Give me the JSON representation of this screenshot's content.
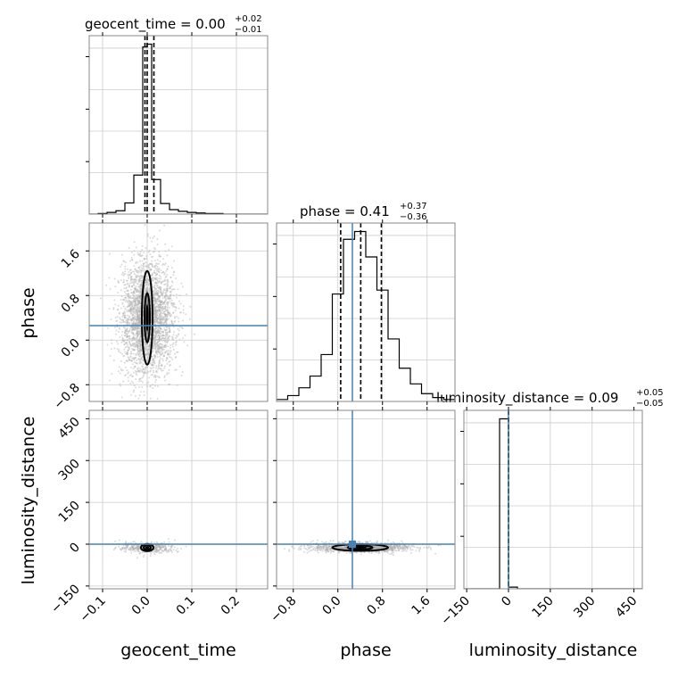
{
  "chart_data": {
    "type": "corner",
    "parameters": [
      "geocent_time",
      "phase",
      "luminosity_distance"
    ],
    "axis_labels": {
      "geocent_time": "geocent_time",
      "phase": "phase",
      "luminosity_distance": "luminosity_distance"
    },
    "truths": {
      "geocent_time": 0.0,
      "phase": 0.26,
      "luminosity_distance": 0
    },
    "ranges": {
      "geocent_time": [
        -0.13,
        0.27
      ],
      "phase": [
        -1.1,
        2.1
      ],
      "luminosity_distance": [
        -160,
        480
      ]
    },
    "ticks": {
      "geocent_time": {
        "values": [
          -0.1,
          0.0,
          0.1,
          0.2
        ],
        "labels": [
          "−0.1",
          "0.0",
          "0.1",
          "0.2"
        ]
      },
      "phase": {
        "values": [
          -0.8,
          0.0,
          0.8,
          1.6
        ],
        "labels": [
          "−0.8",
          "0.0",
          "0.8",
          "1.6"
        ]
      },
      "luminosity_distance": {
        "values": [
          -150,
          0,
          150,
          300,
          450
        ],
        "labels": [
          "−150",
          "0",
          "150",
          "300",
          "450"
        ]
      }
    },
    "titles": [
      {
        "param": "geocent_time",
        "text": "geocent_time = 0.00",
        "sup": "+0.02",
        "sub": "−0.01"
      },
      {
        "param": "phase",
        "text": "phase = 0.41",
        "sup": "+0.37",
        "sub": "−0.36"
      },
      {
        "param": "luminosity_distance",
        "text": "luminosity_distance = 0.09",
        "sup": "+0.05",
        "sub": "−0.05"
      }
    ],
    "histograms": {
      "geocent_time": {
        "quantiles": [
          -0.005,
          0.0,
          0.015
        ],
        "bins": [
          {
            "x0": -0.13,
            "x1": -0.11,
            "h": 0
          },
          {
            "x0": -0.11,
            "x1": -0.09,
            "h": 1
          },
          {
            "x0": -0.09,
            "x1": -0.07,
            "h": 3
          },
          {
            "x0": -0.07,
            "x1": -0.05,
            "h": 6
          },
          {
            "x0": -0.05,
            "x1": -0.03,
            "h": 20
          },
          {
            "x0": -0.03,
            "x1": -0.01,
            "h": 70
          },
          {
            "x0": -0.01,
            "x1": 0.0,
            "h": 300
          },
          {
            "x0": 0.0,
            "x1": 0.01,
            "h": 305
          },
          {
            "x0": 0.01,
            "x1": 0.03,
            "h": 62
          },
          {
            "x0": 0.03,
            "x1": 0.05,
            "h": 19
          },
          {
            "x0": 0.05,
            "x1": 0.07,
            "h": 8
          },
          {
            "x0": 0.07,
            "x1": 0.09,
            "h": 5
          },
          {
            "x0": 0.09,
            "x1": 0.11,
            "h": 3
          },
          {
            "x0": 0.11,
            "x1": 0.13,
            "h": 2
          },
          {
            "x0": 0.13,
            "x1": 0.15,
            "h": 1
          },
          {
            "x0": 0.15,
            "x1": 0.17,
            "h": 1
          },
          {
            "x0": 0.17,
            "x1": 0.27,
            "h": 0
          }
        ]
      },
      "phase": {
        "quantiles": [
          0.05,
          0.41,
          0.78
        ],
        "bins": [
          {
            "x0": -1.1,
            "x1": -0.9,
            "h": 1
          },
          {
            "x0": -0.9,
            "x1": -0.7,
            "h": 3
          },
          {
            "x0": -0.7,
            "x1": -0.5,
            "h": 7
          },
          {
            "x0": -0.5,
            "x1": -0.3,
            "h": 13
          },
          {
            "x0": -0.3,
            "x1": -0.1,
            "h": 24
          },
          {
            "x0": -0.1,
            "x1": 0.1,
            "h": 55
          },
          {
            "x0": 0.1,
            "x1": 0.3,
            "h": 83
          },
          {
            "x0": 0.3,
            "x1": 0.5,
            "h": 87
          },
          {
            "x0": 0.5,
            "x1": 0.7,
            "h": 74
          },
          {
            "x0": 0.7,
            "x1": 0.9,
            "h": 57
          },
          {
            "x0": 0.9,
            "x1": 1.1,
            "h": 32
          },
          {
            "x0": 1.1,
            "x1": 1.3,
            "h": 17
          },
          {
            "x0": 1.3,
            "x1": 1.5,
            "h": 9
          },
          {
            "x0": 1.5,
            "x1": 1.7,
            "h": 4
          },
          {
            "x0": 1.7,
            "x1": 1.9,
            "h": 2
          },
          {
            "x0": 1.9,
            "x1": 2.1,
            "h": 1
          }
        ]
      },
      "luminosity_distance": {
        "quantiles": [
          0.04,
          0.09,
          0.14
        ],
        "bins": [
          {
            "x0": -160,
            "x1": -32,
            "h": 0
          },
          {
            "x0": -32,
            "x1": 0,
            "h": 100
          },
          {
            "x0": 0,
            "x1": 32,
            "h": 1
          },
          {
            "x0": 32,
            "x1": 480,
            "h": 0
          }
        ]
      }
    },
    "contours": [
      {
        "x": "geocent_time",
        "y": "phase",
        "center": [
          0.0,
          0.4
        ],
        "sigma": [
          0.004,
          0.3
        ],
        "scatter_sigma": [
          0.03,
          0.5
        ],
        "scatter_count": 3000,
        "levels": [
          [
            0.006,
            0.44
          ],
          [
            0.012,
            0.84
          ]
        ]
      },
      {
        "x": "geocent_time",
        "y": "luminosity_distance",
        "center": [
          0.0,
          -12
        ],
        "sigma": [
          0.004,
          4
        ],
        "scatter_sigma": [
          0.03,
          10
        ],
        "scatter_count": 400,
        "levels": [
          [
            0.008,
            8
          ],
          [
            0.014,
            13
          ]
        ]
      },
      {
        "x": "phase",
        "y": "luminosity_distance",
        "center": [
          0.4,
          -12
        ],
        "sigma": [
          0.3,
          4
        ],
        "scatter_sigma": [
          0.45,
          9
        ],
        "scatter_count": 1200,
        "levels": [
          [
            0.22,
            7
          ],
          [
            0.5,
            12
          ]
        ]
      }
    ],
    "grid": true,
    "truth_color": "#4682b4",
    "contour_color": "#000000",
    "scatter_color": "#b0b0b0"
  }
}
